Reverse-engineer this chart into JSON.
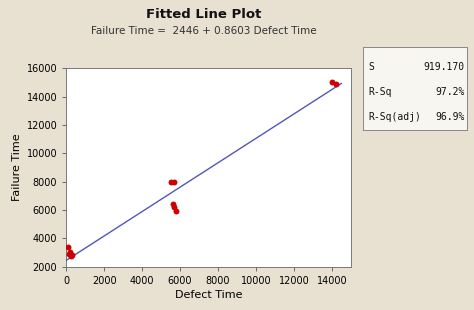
{
  "title": "Fitted Line Plot",
  "subtitle": "Failure Time =  2446 + 0.8603 Defect Time",
  "xlabel": "Defect Time",
  "ylabel": "Failure Time",
  "background_color": "#e8e0d0",
  "plot_bg_color": "#ffffff",
  "scatter_points": [
    [
      100,
      3400
    ],
    [
      200,
      3050
    ],
    [
      150,
      2900
    ],
    [
      250,
      2750
    ],
    [
      300,
      2800
    ],
    [
      5500,
      8000
    ],
    [
      5700,
      8000
    ],
    [
      5600,
      6400
    ],
    [
      5700,
      6200
    ],
    [
      5800,
      5950
    ],
    [
      14000,
      15000
    ],
    [
      14200,
      14900
    ]
  ],
  "line_intercept": 2446,
  "line_slope": 0.8603,
  "line_x": [
    0,
    14500
  ],
  "line_color": "#5555bb",
  "scatter_color": "#cc0000",
  "scatter_size": 18,
  "xlim": [
    0,
    15000
  ],
  "ylim": [
    2000,
    16000
  ],
  "xticks": [
    0,
    2000,
    4000,
    6000,
    8000,
    10000,
    12000,
    14000
  ],
  "yticks": [
    2000,
    4000,
    6000,
    8000,
    10000,
    12000,
    14000,
    16000
  ],
  "stats_labels": [
    "S",
    "R-Sq",
    "R-Sq(adj)"
  ],
  "stats_values": [
    "919.170",
    "97.2%",
    "96.9%"
  ],
  "title_fontsize": 9.5,
  "subtitle_fontsize": 7.5,
  "axis_label_fontsize": 8,
  "tick_fontsize": 7,
  "stats_fontsize": 7
}
